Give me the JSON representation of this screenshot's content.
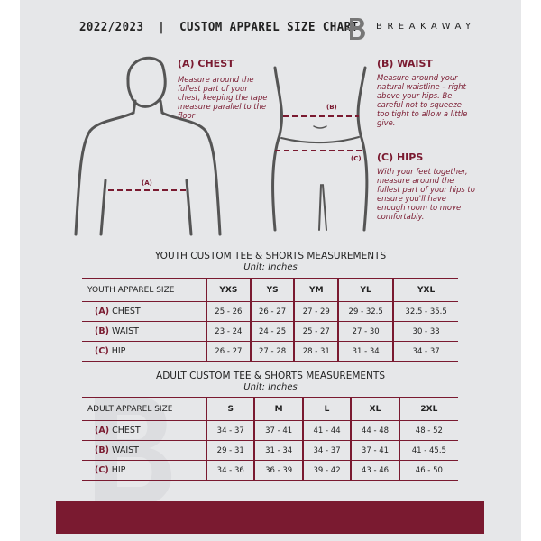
{
  "header": {
    "title": "2022/2023  |  CUSTOM APPAREL SIZE CHART",
    "brand": "BREAKAWAY",
    "logo_letter": "B"
  },
  "measures": {
    "chest": {
      "title": "(A) CHEST",
      "desc": "Measure around the fullest part of your chest, keeping the tape measure parallel to the floor",
      "marker": "(A)"
    },
    "waist": {
      "title": "(B) WAIST",
      "desc": "Measure around your natural waistline – right above your hips. Be careful not to squeeze too tight to allow a little give.",
      "marker": "(B)"
    },
    "hips": {
      "title": "(C) HIPS",
      "desc": "With your feet together, measure around the fullest part of your hips to ensure you'll have enough room to move comfortably.",
      "marker": "(C)"
    }
  },
  "youth": {
    "title": "YOUTH CUSTOM TEE & SHORTS MEASUREMENTS",
    "unit": "Unit: Inches",
    "header": [
      "YOUTH APPAREL SIZE",
      "YXS",
      "YS",
      "YM",
      "YL",
      "YXL"
    ],
    "rows": [
      {
        "code": "(A)",
        "name": "CHEST",
        "values": [
          "25 - 26",
          "26 - 27",
          "27 - 29",
          "29 - 32.5",
          "32.5 - 35.5"
        ]
      },
      {
        "code": "(B)",
        "name": "WAIST",
        "values": [
          "23 - 24",
          "24 - 25",
          "25 - 27",
          "27 - 30",
          "30 - 33"
        ]
      },
      {
        "code": "(C)",
        "name": "HIP",
        "values": [
          "26 - 27",
          "27 - 28",
          "28 - 31",
          "31 - 34",
          "34 - 37"
        ]
      }
    ]
  },
  "adult": {
    "title": "ADULT CUSTOM TEE & SHORTS MEASUREMENTS",
    "unit": "Unit: Inches",
    "header": [
      "ADULT APPAREL SIZE",
      "S",
      "M",
      "L",
      "XL",
      "2XL"
    ],
    "rows": [
      {
        "code": "(A)",
        "name": "CHEST",
        "values": [
          "34 - 37",
          "37 - 41",
          "41 - 44",
          "44 - 48",
          "48 - 52"
        ]
      },
      {
        "code": "(B)",
        "name": "WAIST",
        "values": [
          "29 - 31",
          "31 - 34",
          "34 - 37",
          "37 - 41",
          "41 - 45.5"
        ]
      },
      {
        "code": "(C)",
        "name": "HIP",
        "values": [
          "34 - 36",
          "36 - 39",
          "39 - 42",
          "43 - 46",
          "46 - 50"
        ]
      }
    ]
  },
  "colors": {
    "accent": "#7a1a30",
    "background": "#e6e7e9"
  }
}
